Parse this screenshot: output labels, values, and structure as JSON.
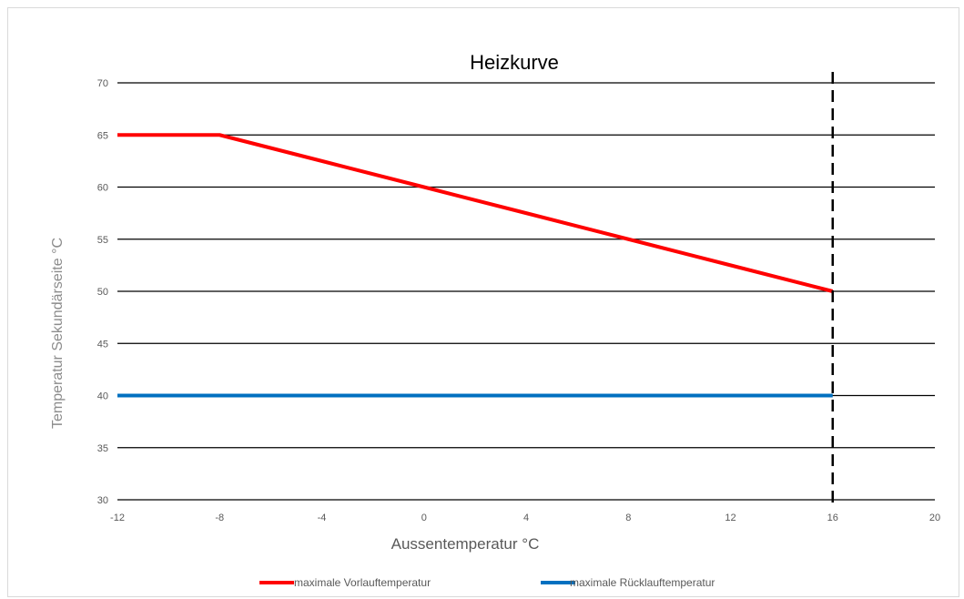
{
  "chart_data": {
    "type": "line",
    "title": "Heizkurve",
    "xlabel": "Aussentemperatur °C",
    "ylabel": "Temperatur Sekundärseite °C",
    "xlim": [
      -12,
      20
    ],
    "ylim": [
      30,
      70
    ],
    "x_ticks": [
      -12,
      -8,
      -4,
      0,
      4,
      8,
      12,
      16,
      20
    ],
    "y_ticks": [
      30,
      35,
      40,
      45,
      50,
      55,
      60,
      65,
      70
    ],
    "grid": "horizontal",
    "legend_position": "bottom",
    "series": [
      {
        "name": "maximale Vorlauftemperatur",
        "color": "#ff0000",
        "x": [
          -12,
          -8,
          -4,
          0,
          4,
          8,
          12,
          16
        ],
        "y": [
          65,
          65,
          62.5,
          60,
          57.5,
          55,
          52.5,
          50
        ]
      },
      {
        "name": "maximale Rücklauftemperatur",
        "color": "#0070c0",
        "x": [
          -12,
          16
        ],
        "y": [
          40,
          40
        ]
      }
    ],
    "reference_line": {
      "x": 16,
      "style": "dashed",
      "color": "#000000"
    }
  }
}
